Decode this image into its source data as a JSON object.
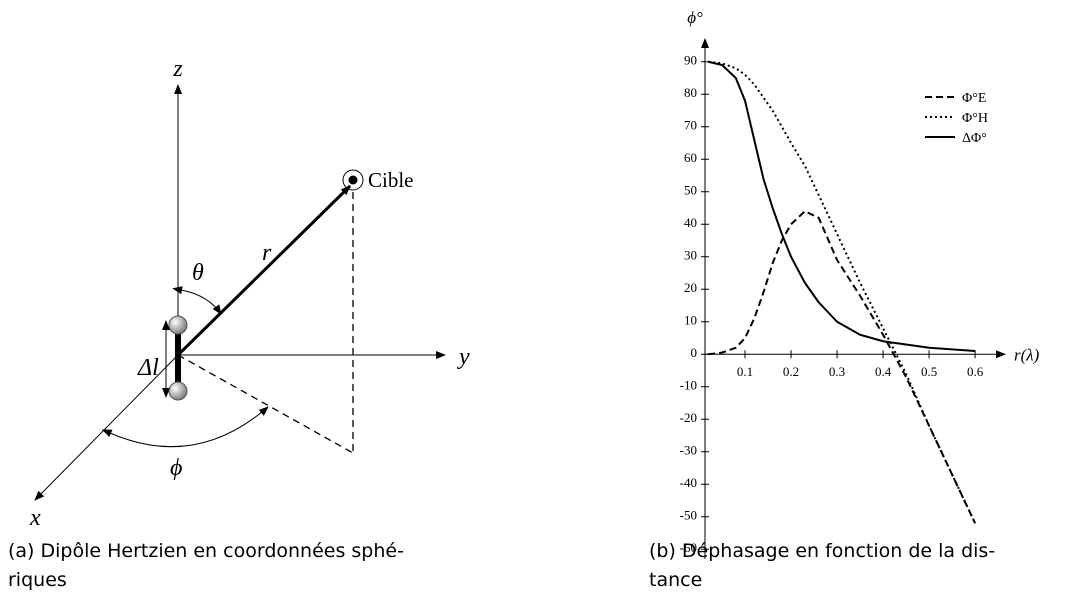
{
  "diagram": {
    "labels": {
      "z": "z",
      "y": "y",
      "x": "x",
      "r": "r",
      "theta": "θ",
      "phi": "ϕ",
      "dl": "Δl",
      "target": "Cible"
    }
  },
  "captions": [
    [
      "(a) Dipôle Hertzien en coordonnées sphé-",
      "riques"
    ],
    [
      "(b) Déphasage en fonction de la dis-",
      "tance"
    ]
  ],
  "chart_data": {
    "type": "line",
    "xlabel": "r(λ)",
    "ylabel": "ϕ°",
    "x": [
      0.02,
      0.05,
      0.08,
      0.1,
      0.12,
      0.14,
      0.16,
      0.18,
      0.2,
      0.23,
      0.26,
      0.3,
      0.35,
      0.4,
      0.45,
      0.5,
      0.55,
      0.6
    ],
    "series": [
      {
        "name": "Φ°E",
        "color": "#000000",
        "style": "dashed",
        "values": [
          0,
          0.5,
          2,
          5,
          11,
          19,
          28,
          35,
          40,
          44,
          42,
          29,
          18,
          6,
          -7,
          -22,
          -37,
          -52
        ]
      },
      {
        "name": "Φ°H",
        "color": "#000000",
        "style": "dotted",
        "values": [
          90,
          89.5,
          88,
          86,
          83,
          79,
          75,
          70,
          65,
          58,
          49,
          37,
          22,
          8,
          -6,
          -22,
          -37,
          -52
        ]
      },
      {
        "name": "ΔΦ°",
        "color": "#000000",
        "style": "solid",
        "values": [
          90,
          89,
          85,
          78,
          66,
          54,
          45,
          37,
          30,
          22,
          16,
          10,
          6,
          4,
          3,
          2,
          1.5,
          1
        ]
      }
    ],
    "xlim": [
      0.013,
      0.665
    ],
    "ylim": [
      -63,
      97
    ],
    "xticks": [
      0.1,
      0.2,
      0.3,
      0.4,
      0.5,
      0.6
    ],
    "yticks": [
      -60,
      -50,
      -40,
      -30,
      -20,
      -10,
      0,
      10,
      20,
      30,
      40,
      50,
      60,
      70,
      80,
      90
    ],
    "legend": "upper right"
  }
}
